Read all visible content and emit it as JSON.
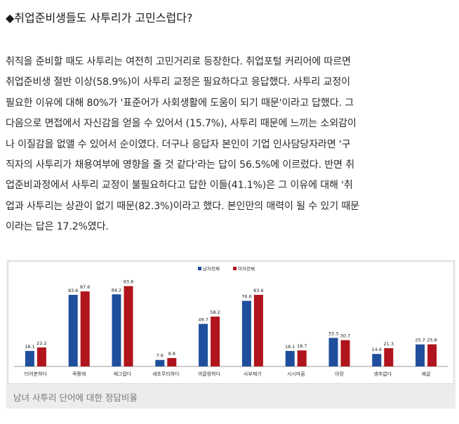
{
  "heading": "◆취업준비생들도 사투리가 고민스럽다?",
  "paragraph_lines": [
    "취직을 준비할 때도 사투리는 여전히 고민거리로 등장한다. 취업포털 커리어에 따르면",
    "취업준비생 절반 이상(58.9%)이 사투리 교정은 필요하다고 응답했다. 사투리 교정이",
    "필요한 이유에 대해 80%가 '표준어가 사회생활에 도움이 되기 때문'이라고 답했다. 그",
    "다음으로 면접에서 자신감을 얻을 수 있어서 (15.7%), 사투리 때문에 느끼는 소외감이",
    "나 이질감을 없앨 수 있어서 순이였다. 더구나 응답자 본인이 기업 인사담당자라면 '구",
    "직자의 사투리가 채용여부에 영향을 줄 것 같다'라는 답이 56.5%에 이르렀다. 반면 취",
    "업준비과정에서 사투리 교정이 불필요하다고 답한 이들(41.1%)은 그 이유에 대해 '취",
    "업과 사투리는 상관이 없기 때문(82.3%)이라고 했다. 본인만의 매력이 될 수 있기 때문",
    "이라는 답은 17.2%였다."
  ],
  "caption": "남녀 사투리 단어에 대한 정답비율",
  "chart_data": {
    "type": "bar",
    "categories": [
      "터어분하다",
      "곽쭝에",
      "쌔그랍다",
      "새초무리하다",
      "까끌랑하다",
      "사부제기",
      "시시마꼼",
      "아망",
      "생추없다",
      "예살"
    ],
    "series": [
      {
        "name": "남자전체",
        "values": [
          18.1,
          83.6,
          84.2,
          7.6,
          49.7,
          76.6,
          18.1,
          33.3,
          14.6,
          25.7
        ],
        "color": "#1f4e9c"
      },
      {
        "name": "여자전체",
        "values": [
          22.2,
          87.6,
          93.8,
          9.8,
          58.2,
          83.6,
          18.7,
          30.7,
          21.3,
          25.8
        ],
        "color": "#b0141c"
      }
    ],
    "ylim": [
      0,
      100
    ],
    "legend": "top-center",
    "grid": false
  }
}
